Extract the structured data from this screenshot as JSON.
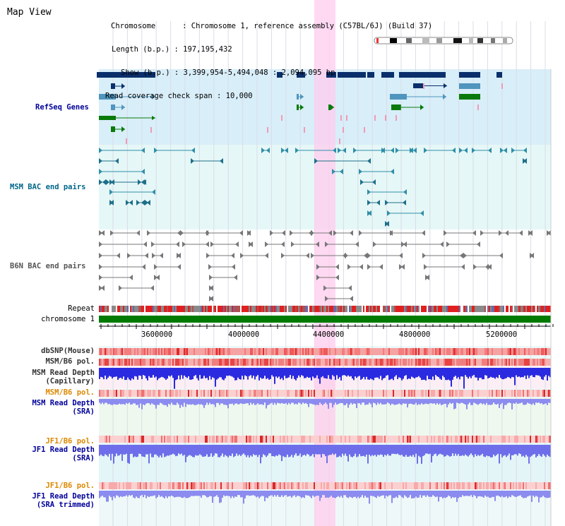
{
  "title": "Map View",
  "info": {
    "chromosome_line": "Chromosome      : Chromosome 1, reference assembly (C57BL/6J) (Build 37)",
    "length_line": "Length (b.p.) : 197,195,432",
    "show_line": "Show (b.p.) : 3,399,954-5,494,048 : 2,094,095 bp",
    "span_line": "Read coverage check span : 10,000"
  },
  "tracks": {
    "refseq": "RefSeq Genes",
    "msm_bac": "MSM BAC end pairs",
    "b6n_bac": "B6N BAC end pairs",
    "repeat": "Repeat",
    "chromosome": "chromosome 1",
    "dbsnp": "dbSNP(Mouse)",
    "msm_b6_pol_1": "MSM/B6 pol.",
    "msm_depth_cap_1": "MSM Read Depth",
    "msm_depth_cap_2": "(Capillary)",
    "msm_b6_pol_2": "MSM/B6 pol.",
    "msm_depth_sra_1": "MSM Read Depth",
    "msm_depth_sra_2": "(SRA)",
    "jf1_b6_pol_1": "JF1/B6 pol.",
    "jf1_depth_sra_1": "JF1 Read Depth",
    "jf1_depth_sra_2": "(SRA)",
    "jf1_b6_pol_2": "JF1/B6 pol.",
    "jf1_depth_trim_1": "JF1 Read Depth",
    "jf1_depth_trim_2": "(SRA trimmed)"
  },
  "axis": {
    "ticks": [
      "3600000",
      "4000000",
      "4400000",
      "4800000",
      "5200000"
    ]
  },
  "colors": {
    "label_gray": "#333333",
    "label_navy": "#000099",
    "label_orange": "#dd8800",
    "label_teal": "#006688",
    "highlight": "#ffccee",
    "gene_dark": "#0a2f6b",
    "gene_mid": "#4f95bd",
    "gene_green": "#0a7a0a",
    "chrom_green": "#007a00"
  }
}
